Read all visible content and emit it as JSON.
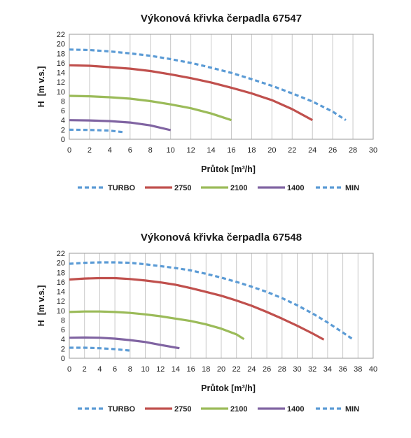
{
  "chart_data": [
    {
      "type": "line",
      "title": "Výkonová křivka čerpadla 67547",
      "xlabel": "Průtok [m³/h]",
      "ylabel": "H  [m v.s.]",
      "xlim": [
        0,
        30
      ],
      "ylim": [
        0,
        22
      ],
      "xticks": [
        "0",
        "2",
        "4",
        "6",
        "8",
        "10",
        "12",
        "14",
        "16",
        "18",
        "20",
        "22",
        "24",
        "26",
        "28",
        "30"
      ],
      "yticks": [
        "0",
        "2",
        "4",
        "6",
        "8",
        "10",
        "12",
        "14",
        "16",
        "18",
        "20",
        "22"
      ],
      "grid": "vertical",
      "legend_position": "bottom",
      "series": [
        {
          "name": "TURBO",
          "color": "#5B9BD5",
          "style": "dashed",
          "points": [
            [
              0,
              18.8
            ],
            [
              2,
              18.7
            ],
            [
              4,
              18.4
            ],
            [
              6,
              18.0
            ],
            [
              8,
              17.5
            ],
            [
              10,
              16.8
            ],
            [
              12,
              16.0
            ],
            [
              14,
              15.0
            ],
            [
              16,
              13.9
            ],
            [
              18,
              12.6
            ],
            [
              20,
              11.2
            ],
            [
              22,
              9.6
            ],
            [
              24,
              7.9
            ],
            [
              26,
              5.8
            ],
            [
              27.3,
              4.0
            ]
          ]
        },
        {
          "name": "2750",
          "color": "#C0504D",
          "style": "solid",
          "points": [
            [
              0,
              15.5
            ],
            [
              2,
              15.4
            ],
            [
              4,
              15.1
            ],
            [
              6,
              14.8
            ],
            [
              8,
              14.3
            ],
            [
              10,
              13.6
            ],
            [
              12,
              12.8
            ],
            [
              14,
              11.9
            ],
            [
              16,
              10.8
            ],
            [
              18,
              9.6
            ],
            [
              20,
              8.2
            ],
            [
              22,
              6.3
            ],
            [
              24,
              4.0
            ]
          ]
        },
        {
          "name": "2100",
          "color": "#9BBB59",
          "style": "solid",
          "points": [
            [
              0,
              9.1
            ],
            [
              2,
              9.0
            ],
            [
              4,
              8.8
            ],
            [
              6,
              8.5
            ],
            [
              8,
              8.0
            ],
            [
              10,
              7.3
            ],
            [
              12,
              6.5
            ],
            [
              14,
              5.4
            ],
            [
              16,
              4.0
            ]
          ]
        },
        {
          "name": "1400",
          "color": "#8064A2",
          "style": "solid",
          "points": [
            [
              0,
              4.0
            ],
            [
              2,
              3.95
            ],
            [
              4,
              3.8
            ],
            [
              6,
              3.5
            ],
            [
              8,
              2.9
            ],
            [
              10,
              1.9
            ]
          ]
        },
        {
          "name": "MIN",
          "color": "#5B9BD5",
          "style": "dashed",
          "points": [
            [
              0,
              2.0
            ],
            [
              2,
              1.95
            ],
            [
              4,
              1.8
            ],
            [
              5.3,
              1.5
            ]
          ]
        }
      ]
    },
    {
      "type": "line",
      "title": "Výkonová křivka čerpadla 67548",
      "xlabel": "Průtok [m³/h]",
      "ylabel": "H  [m v.s.]",
      "xlim": [
        0,
        40
      ],
      "ylim": [
        0,
        22
      ],
      "xticks": [
        "0",
        "2",
        "4",
        "6",
        "8",
        "10",
        "12",
        "14",
        "16",
        "18",
        "20",
        "22",
        "24",
        "26",
        "28",
        "30",
        "32",
        "34",
        "36",
        "38",
        "40"
      ],
      "yticks": [
        "0",
        "2",
        "4",
        "6",
        "8",
        "10",
        "12",
        "14",
        "16",
        "18",
        "20",
        "22"
      ],
      "grid": "vertical",
      "legend_position": "bottom",
      "series": [
        {
          "name": "TURBO",
          "color": "#5B9BD5",
          "style": "dashed",
          "points": [
            [
              0,
              19.8
            ],
            [
              2,
              20.0
            ],
            [
              4,
              20.1
            ],
            [
              6,
              20.1
            ],
            [
              8,
              20.0
            ],
            [
              10,
              19.7
            ],
            [
              12,
              19.3
            ],
            [
              14,
              18.9
            ],
            [
              16,
              18.4
            ],
            [
              18,
              17.7
            ],
            [
              20,
              16.9
            ],
            [
              22,
              16.0
            ],
            [
              24,
              15.0
            ],
            [
              26,
              13.9
            ],
            [
              28,
              12.6
            ],
            [
              30,
              11.1
            ],
            [
              32,
              9.4
            ],
            [
              34,
              7.5
            ],
            [
              36,
              5.4
            ],
            [
              37.2,
              4.1
            ]
          ]
        },
        {
          "name": "2750",
          "color": "#C0504D",
          "style": "solid",
          "points": [
            [
              0,
              16.5
            ],
            [
              2,
              16.7
            ],
            [
              4,
              16.8
            ],
            [
              6,
              16.8
            ],
            [
              8,
              16.6
            ],
            [
              10,
              16.3
            ],
            [
              12,
              15.9
            ],
            [
              14,
              15.4
            ],
            [
              16,
              14.7
            ],
            [
              18,
              13.9
            ],
            [
              20,
              13.1
            ],
            [
              22,
              12.1
            ],
            [
              24,
              11.0
            ],
            [
              26,
              9.7
            ],
            [
              28,
              8.3
            ],
            [
              30,
              6.8
            ],
            [
              32,
              5.2
            ],
            [
              33.5,
              3.9
            ]
          ]
        },
        {
          "name": "2100",
          "color": "#9BBB59",
          "style": "solid",
          "points": [
            [
              0,
              9.7
            ],
            [
              2,
              9.8
            ],
            [
              4,
              9.8
            ],
            [
              6,
              9.7
            ],
            [
              8,
              9.5
            ],
            [
              10,
              9.2
            ],
            [
              12,
              8.8
            ],
            [
              14,
              8.3
            ],
            [
              16,
              7.8
            ],
            [
              18,
              7.1
            ],
            [
              20,
              6.2
            ],
            [
              22,
              5.0
            ],
            [
              23,
              4.0
            ]
          ]
        },
        {
          "name": "1400",
          "color": "#8064A2",
          "style": "solid",
          "points": [
            [
              0,
              4.3
            ],
            [
              2,
              4.35
            ],
            [
              4,
              4.3
            ],
            [
              6,
              4.1
            ],
            [
              8,
              3.8
            ],
            [
              10,
              3.4
            ],
            [
              12,
              2.8
            ],
            [
              14.5,
              2.1
            ]
          ]
        },
        {
          "name": "MIN",
          "color": "#5B9BD5",
          "style": "dashed",
          "points": [
            [
              0,
              2.2
            ],
            [
              2,
              2.2
            ],
            [
              4,
              2.1
            ],
            [
              6,
              1.9
            ],
            [
              8,
              1.6
            ]
          ]
        }
      ]
    }
  ]
}
